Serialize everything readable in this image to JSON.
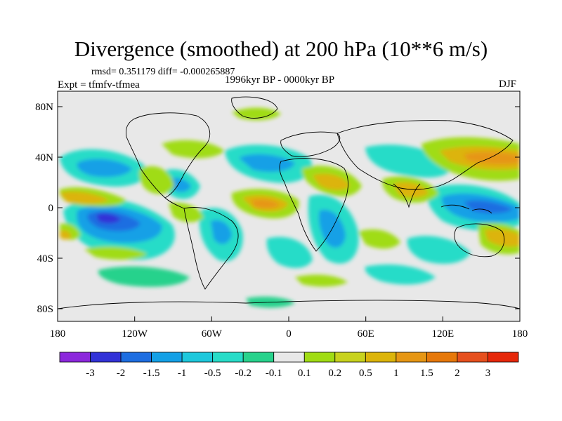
{
  "title": "Divergence (smoothed) at 200 hPa (10**6 m/s)",
  "stats": {
    "rmsd_label": "rmsd=",
    "rmsd": "0.351179",
    "diff_label": "diff=",
    "diff": "-0.000265887"
  },
  "expt": "Expt = tfmfv-tfmea",
  "period": "1996kyr BP - 0000kyr BP",
  "season": "DJF",
  "lat_ticks": [
    "80N",
    "40N",
    "0",
    "40S",
    "80S"
  ],
  "lon_ticks": [
    "180",
    "120W",
    "60W",
    "0",
    "60E",
    "120E",
    "180"
  ],
  "legend": {
    "colors": [
      "#8c28dc",
      "#3232d7",
      "#1e6ee1",
      "#14a0e6",
      "#1ec8dc",
      "#28dcc8",
      "#28d28c",
      "#e8e8e8",
      "#a0dc14",
      "#c8d21e",
      "#dcb40a",
      "#e69614",
      "#e6780a",
      "#e6501e",
      "#e6280a"
    ],
    "labels": [
      "-3",
      "-2",
      "-1.5",
      "-1",
      "-0.5",
      "-0.2",
      "-0.1",
      "0.1",
      "0.2",
      "0.5",
      "1",
      "1.5",
      "2",
      "3"
    ]
  }
}
